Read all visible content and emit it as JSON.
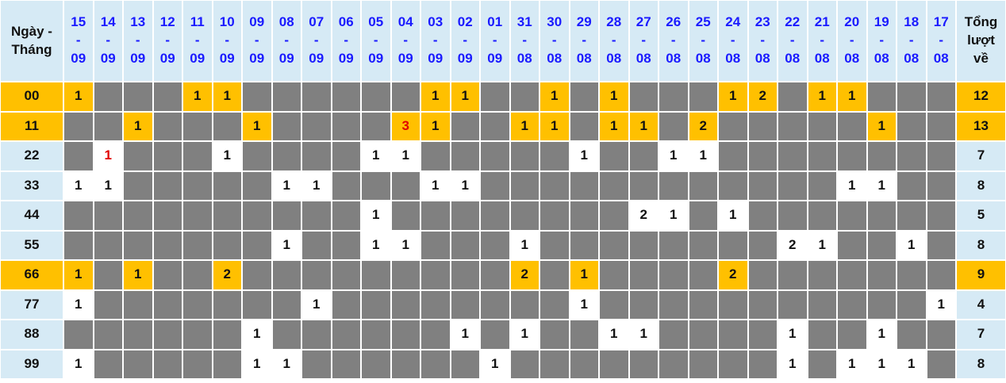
{
  "table": {
    "corner": "Ngày -\nTháng",
    "total_header": "Tổng\nlượt\nvề",
    "columns": [
      "15\n-\n09",
      "14\n-\n09",
      "13\n-\n09",
      "12\n-\n09",
      "11\n-\n09",
      "10\n-\n09",
      "09\n-\n09",
      "08\n-\n09",
      "07\n-\n09",
      "06\n-\n09",
      "05\n-\n09",
      "04\n-\n09",
      "03\n-\n09",
      "02\n-\n09",
      "01\n-\n09",
      "31\n-\n08",
      "30\n-\n08",
      "29\n-\n08",
      "28\n-\n08",
      "27\n-\n08",
      "26\n-\n08",
      "25\n-\n08",
      "24\n-\n08",
      "23\n-\n08",
      "22\n-\n08",
      "21\n-\n08",
      "20\n-\n08",
      "19\n-\n08",
      "18\n-\n08",
      "17\n-\n08"
    ],
    "rows": [
      {
        "label": "00",
        "highlight": true,
        "cells": [
          1,
          null,
          null,
          null,
          1,
          1,
          null,
          null,
          null,
          null,
          null,
          null,
          1,
          1,
          null,
          null,
          1,
          null,
          1,
          null,
          null,
          null,
          1,
          2,
          null,
          1,
          1,
          null,
          null,
          null
        ],
        "total": 12
      },
      {
        "label": "11",
        "highlight": true,
        "red": [
          11
        ],
        "cells": [
          null,
          null,
          1,
          null,
          null,
          null,
          1,
          null,
          null,
          null,
          null,
          3,
          1,
          null,
          null,
          1,
          1,
          null,
          1,
          1,
          null,
          2,
          null,
          null,
          null,
          null,
          null,
          1,
          null,
          null
        ],
        "total": 13
      },
      {
        "label": "22",
        "red": [
          1
        ],
        "cells": [
          null,
          1,
          null,
          null,
          null,
          1,
          null,
          null,
          null,
          null,
          1,
          1,
          null,
          null,
          null,
          null,
          null,
          1,
          null,
          null,
          1,
          1,
          null,
          null,
          null,
          null,
          null,
          null,
          null,
          null
        ],
        "total": 7
      },
      {
        "label": "33",
        "cells": [
          1,
          1,
          null,
          null,
          null,
          null,
          null,
          1,
          1,
          null,
          null,
          null,
          1,
          1,
          null,
          null,
          null,
          null,
          null,
          null,
          null,
          null,
          null,
          null,
          null,
          null,
          1,
          1,
          null,
          null
        ],
        "total": 8
      },
      {
        "label": "44",
        "cells": [
          null,
          null,
          null,
          null,
          null,
          null,
          null,
          null,
          null,
          null,
          1,
          null,
          null,
          null,
          null,
          null,
          null,
          null,
          null,
          2,
          1,
          null,
          1,
          null,
          null,
          null,
          null,
          null,
          null,
          null
        ],
        "total": 5
      },
      {
        "label": "55",
        "cells": [
          null,
          null,
          null,
          null,
          null,
          null,
          null,
          1,
          null,
          null,
          1,
          1,
          null,
          null,
          null,
          1,
          null,
          null,
          null,
          null,
          null,
          null,
          null,
          null,
          2,
          1,
          null,
          null,
          1,
          null
        ],
        "total": 8
      },
      {
        "label": "66",
        "highlight": true,
        "cells": [
          1,
          null,
          1,
          null,
          null,
          2,
          null,
          null,
          null,
          null,
          null,
          null,
          null,
          null,
          null,
          2,
          null,
          1,
          null,
          null,
          null,
          null,
          2,
          null,
          null,
          null,
          null,
          null,
          null,
          null
        ],
        "total": 9
      },
      {
        "label": "77",
        "cells": [
          1,
          null,
          null,
          null,
          null,
          null,
          null,
          null,
          1,
          null,
          null,
          null,
          null,
          null,
          null,
          null,
          null,
          1,
          null,
          null,
          null,
          null,
          null,
          null,
          null,
          null,
          null,
          null,
          null,
          1
        ],
        "total": 4
      },
      {
        "label": "88",
        "cells": [
          null,
          null,
          null,
          null,
          null,
          null,
          1,
          null,
          null,
          null,
          null,
          null,
          null,
          1,
          null,
          1,
          null,
          null,
          1,
          1,
          null,
          null,
          null,
          null,
          1,
          null,
          null,
          1,
          null,
          null
        ],
        "total": 7
      },
      {
        "label": "99",
        "cells": [
          1,
          null,
          null,
          null,
          null,
          null,
          1,
          1,
          null,
          null,
          null,
          null,
          null,
          null,
          1,
          null,
          null,
          null,
          null,
          null,
          null,
          null,
          null,
          null,
          1,
          null,
          1,
          1,
          1,
          null
        ],
        "total": 8
      }
    ]
  }
}
